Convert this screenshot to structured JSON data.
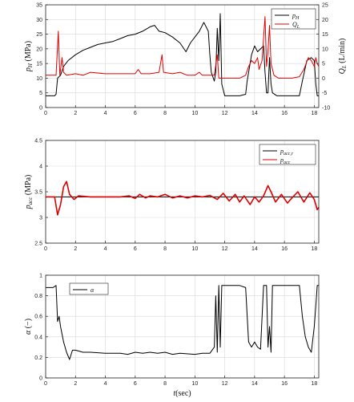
{
  "chart_data": [
    {
      "type": "line",
      "xlabel": "",
      "ylabel": "p_H (MPa)",
      "ylabel_right": "Q_L (L/min)",
      "xlim": [
        0,
        18.3
      ],
      "ylim": [
        0,
        35
      ],
      "ylim_right": [
        -10,
        25
      ],
      "xticks": [
        0,
        2,
        4,
        6,
        8,
        10,
        12,
        14,
        16,
        18
      ],
      "yticks": [
        0,
        5,
        10,
        15,
        20,
        25,
        30,
        35
      ],
      "yticks_right": [
        -10,
        -5,
        0,
        5,
        10,
        15,
        20,
        25
      ],
      "grid": true,
      "legend": "top-right",
      "series": [
        {
          "name": "p_H",
          "color": "#000000",
          "axis": "left",
          "points": [
            [
              0,
              4
            ],
            [
              0.6,
              4
            ],
            [
              0.7,
              4.5
            ],
            [
              0.8,
              10
            ],
            [
              1.0,
              11
            ],
            [
              1.2,
              14
            ],
            [
              1.5,
              16
            ],
            [
              2.0,
              18
            ],
            [
              2.5,
              19.5
            ],
            [
              3.0,
              20.5
            ],
            [
              3.5,
              21.5
            ],
            [
              4.0,
              22
            ],
            [
              4.5,
              22.5
            ],
            [
              5.0,
              23.5
            ],
            [
              5.5,
              24.5
            ],
            [
              6.0,
              25
            ],
            [
              6.5,
              26
            ],
            [
              7.0,
              27.5
            ],
            [
              7.3,
              28
            ],
            [
              7.6,
              26
            ],
            [
              8.0,
              25.5
            ],
            [
              8.5,
              24
            ],
            [
              9.0,
              22
            ],
            [
              9.4,
              19
            ],
            [
              9.7,
              22
            ],
            [
              10.0,
              24
            ],
            [
              10.3,
              26
            ],
            [
              10.6,
              29
            ],
            [
              10.9,
              26
            ],
            [
              11.0,
              18
            ],
            [
              11.1,
              12
            ],
            [
              11.3,
              9
            ],
            [
              11.4,
              12
            ],
            [
              11.5,
              27
            ],
            [
              11.6,
              16
            ],
            [
              11.7,
              32
            ],
            [
              11.8,
              8
            ],
            [
              12.0,
              4
            ],
            [
              12.5,
              4
            ],
            [
              13.0,
              4
            ],
            [
              13.4,
              4.5
            ],
            [
              13.5,
              9
            ],
            [
              13.8,
              18
            ],
            [
              14.0,
              21
            ],
            [
              14.2,
              19
            ],
            [
              14.4,
              20
            ],
            [
              14.6,
              21
            ],
            [
              14.7,
              12
            ],
            [
              14.8,
              5
            ],
            [
              14.9,
              5
            ],
            [
              15.0,
              17
            ],
            [
              15.1,
              8
            ],
            [
              15.2,
              5
            ],
            [
              15.5,
              4
            ],
            [
              16.0,
              4
            ],
            [
              16.5,
              4
            ],
            [
              17.0,
              4
            ],
            [
              17.2,
              9
            ],
            [
              17.5,
              16
            ],
            [
              17.8,
              17
            ],
            [
              18.0,
              16
            ],
            [
              18.1,
              8
            ],
            [
              18.2,
              4
            ],
            [
              18.3,
              4
            ]
          ]
        },
        {
          "name": "Q_L",
          "color": "#e00000",
          "axis": "right",
          "points": [
            [
              0,
              1
            ],
            [
              0.7,
              1
            ],
            [
              0.85,
              16
            ],
            [
              0.95,
              1
            ],
            [
              1.1,
              7
            ],
            [
              1.2,
              2
            ],
            [
              1.4,
              1
            ],
            [
              2.0,
              1.5
            ],
            [
              2.5,
              1
            ],
            [
              3.0,
              2
            ],
            [
              4.0,
              1.5
            ],
            [
              5.0,
              1.5
            ],
            [
              6.0,
              1.5
            ],
            [
              6.2,
              3
            ],
            [
              6.4,
              1.5
            ],
            [
              7.0,
              1.5
            ],
            [
              7.6,
              2
            ],
            [
              7.8,
              8
            ],
            [
              7.9,
              2
            ],
            [
              8.5,
              1.5
            ],
            [
              9.0,
              2
            ],
            [
              9.5,
              1
            ],
            [
              10.0,
              1
            ],
            [
              10.3,
              2
            ],
            [
              10.5,
              1
            ],
            [
              11.0,
              1
            ],
            [
              11.3,
              1
            ],
            [
              11.5,
              8
            ],
            [
              11.6,
              0
            ],
            [
              12.0,
              0
            ],
            [
              12.5,
              0
            ],
            [
              13.0,
              0
            ],
            [
              13.4,
              1
            ],
            [
              13.6,
              4
            ],
            [
              13.8,
              6
            ],
            [
              14.0,
              5
            ],
            [
              14.2,
              7
            ],
            [
              14.3,
              3
            ],
            [
              14.5,
              6
            ],
            [
              14.7,
              21
            ],
            [
              14.8,
              4
            ],
            [
              14.9,
              9
            ],
            [
              15.0,
              18
            ],
            [
              15.1,
              5
            ],
            [
              15.3,
              1
            ],
            [
              15.6,
              0
            ],
            [
              16.0,
              0
            ],
            [
              16.5,
              0
            ],
            [
              17.0,
              0.5
            ],
            [
              17.3,
              3
            ],
            [
              17.6,
              7
            ],
            [
              17.8,
              6
            ],
            [
              18.0,
              4
            ],
            [
              18.1,
              7
            ],
            [
              18.2,
              5
            ],
            [
              18.3,
              4
            ]
          ]
        }
      ]
    },
    {
      "type": "line",
      "xlabel": "",
      "ylabel": "p_acc (MPa)",
      "xlim": [
        0,
        18.3
      ],
      "ylim": [
        2.5,
        4.5
      ],
      "xticks": [
        0,
        2,
        4,
        6,
        8,
        10,
        12,
        14,
        16,
        18
      ],
      "yticks": [
        2.5,
        3,
        3.5,
        4,
        4.5
      ],
      "grid": true,
      "legend": "top-right",
      "series": [
        {
          "name": "p_acc_r",
          "color": "#000000",
          "points": [
            [
              0,
              3.4
            ],
            [
              18.3,
              3.4
            ]
          ]
        },
        {
          "name": "p_acc",
          "color": "#e00000",
          "points": [
            [
              0,
              3.4
            ],
            [
              0.6,
              3.4
            ],
            [
              0.8,
              3.05
            ],
            [
              1.0,
              3.25
            ],
            [
              1.2,
              3.6
            ],
            [
              1.4,
              3.7
            ],
            [
              1.6,
              3.45
            ],
            [
              1.9,
              3.35
            ],
            [
              2.2,
              3.42
            ],
            [
              3.0,
              3.4
            ],
            [
              4.0,
              3.4
            ],
            [
              5.0,
              3.4
            ],
            [
              5.6,
              3.42
            ],
            [
              6.0,
              3.37
            ],
            [
              6.3,
              3.45
            ],
            [
              6.7,
              3.38
            ],
            [
              7.0,
              3.42
            ],
            [
              7.5,
              3.4
            ],
            [
              8.0,
              3.45
            ],
            [
              8.5,
              3.38
            ],
            [
              9.0,
              3.42
            ],
            [
              9.5,
              3.38
            ],
            [
              10.0,
              3.42
            ],
            [
              10.5,
              3.4
            ],
            [
              11.0,
              3.43
            ],
            [
              11.5,
              3.35
            ],
            [
              11.9,
              3.47
            ],
            [
              12.3,
              3.32
            ],
            [
              12.7,
              3.45
            ],
            [
              13.0,
              3.3
            ],
            [
              13.3,
              3.42
            ],
            [
              13.7,
              3.25
            ],
            [
              14.0,
              3.4
            ],
            [
              14.3,
              3.3
            ],
            [
              14.6,
              3.42
            ],
            [
              14.9,
              3.62
            ],
            [
              15.1,
              3.5
            ],
            [
              15.4,
              3.3
            ],
            [
              15.8,
              3.45
            ],
            [
              16.2,
              3.28
            ],
            [
              16.5,
              3.38
            ],
            [
              16.9,
              3.5
            ],
            [
              17.3,
              3.3
            ],
            [
              17.7,
              3.48
            ],
            [
              18.0,
              3.35
            ],
            [
              18.2,
              3.15
            ],
            [
              18.3,
              3.2
            ]
          ]
        }
      ]
    },
    {
      "type": "line",
      "xlabel": "t(sec)",
      "ylabel": "α (−)",
      "xlim": [
        0,
        18.3
      ],
      "ylim": [
        0,
        1
      ],
      "xticks": [
        0,
        2,
        4,
        6,
        8,
        10,
        12,
        14,
        16,
        18
      ],
      "yticks": [
        0,
        0.2,
        0.4,
        0.6,
        0.8,
        1
      ],
      "grid": true,
      "legend": "top-left",
      "series": [
        {
          "name": "α",
          "color": "#000000",
          "points": [
            [
              0,
              0.88
            ],
            [
              0.5,
              0.88
            ],
            [
              0.7,
              0.9
            ],
            [
              0.8,
              0.55
            ],
            [
              0.9,
              0.6
            ],
            [
              1.0,
              0.5
            ],
            [
              1.2,
              0.35
            ],
            [
              1.4,
              0.25
            ],
            [
              1.6,
              0.18
            ],
            [
              1.8,
              0.27
            ],
            [
              2.0,
              0.27
            ],
            [
              2.5,
              0.25
            ],
            [
              3.0,
              0.25
            ],
            [
              4.0,
              0.24
            ],
            [
              5.0,
              0.24
            ],
            [
              5.5,
              0.23
            ],
            [
              6.0,
              0.25
            ],
            [
              6.5,
              0.24
            ],
            [
              7.0,
              0.25
            ],
            [
              7.5,
              0.24
            ],
            [
              8.0,
              0.25
            ],
            [
              8.5,
              0.23
            ],
            [
              9.0,
              0.24
            ],
            [
              10.0,
              0.23
            ],
            [
              10.5,
              0.24
            ],
            [
              11.0,
              0.24
            ],
            [
              11.3,
              0.3
            ],
            [
              11.4,
              0.8
            ],
            [
              11.5,
              0.25
            ],
            [
              11.6,
              0.9
            ],
            [
              11.7,
              0.3
            ],
            [
              11.8,
              0.9
            ],
            [
              12.0,
              0.9
            ],
            [
              12.5,
              0.9
            ],
            [
              13.0,
              0.9
            ],
            [
              13.4,
              0.88
            ],
            [
              13.6,
              0.35
            ],
            [
              13.8,
              0.3
            ],
            [
              14.0,
              0.35
            ],
            [
              14.2,
              0.3
            ],
            [
              14.4,
              0.28
            ],
            [
              14.6,
              0.9
            ],
            [
              14.8,
              0.9
            ],
            [
              14.9,
              0.3
            ],
            [
              15.0,
              0.5
            ],
            [
              15.1,
              0.25
            ],
            [
              15.2,
              0.9
            ],
            [
              15.5,
              0.9
            ],
            [
              16.0,
              0.9
            ],
            [
              16.5,
              0.9
            ],
            [
              17.0,
              0.9
            ],
            [
              17.2,
              0.6
            ],
            [
              17.4,
              0.4
            ],
            [
              17.6,
              0.3
            ],
            [
              17.8,
              0.25
            ],
            [
              18.0,
              0.5
            ],
            [
              18.1,
              0.7
            ],
            [
              18.2,
              0.9
            ],
            [
              18.3,
              0.9
            ]
          ]
        }
      ]
    }
  ]
}
